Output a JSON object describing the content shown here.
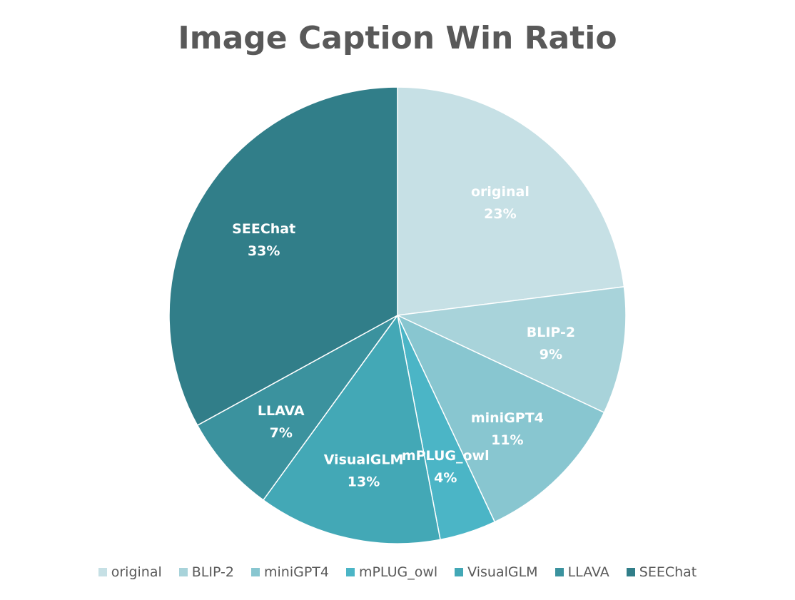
{
  "chart_data": {
    "type": "pie",
    "title": "Image Caption Win Ratio",
    "legend_position": "bottom",
    "slices": [
      {
        "name": "original",
        "value": 23,
        "label": "23%",
        "color": "#c6e0e5"
      },
      {
        "name": "BLIP-2",
        "value": 9,
        "label": "9%",
        "color": "#a8d3da"
      },
      {
        "name": "miniGPT4",
        "value": 11,
        "label": "11%",
        "color": "#88c6d0"
      },
      {
        "name": "mPLUG_owl",
        "value": 4,
        "label": "4%",
        "color": "#4bb5c6"
      },
      {
        "name": "VisualGLM",
        "value": 13,
        "label": "13%",
        "color": "#43a8b6"
      },
      {
        "name": "LLAVA",
        "value": 7,
        "label": "7%",
        "color": "#3b929e"
      },
      {
        "name": "SEEChat",
        "value": 33,
        "label": "33%",
        "color": "#317e89"
      }
    ]
  }
}
